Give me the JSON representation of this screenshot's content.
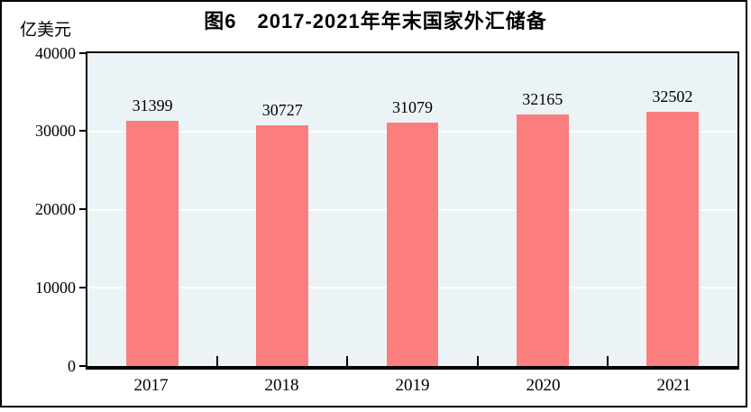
{
  "title": "图6　2017-2021年年末国家外汇储备",
  "unit_label": "亿美元",
  "chart_data": {
    "type": "bar",
    "title": "图6　2017-2021年年末国家外汇储备",
    "categories": [
      "2017",
      "2018",
      "2019",
      "2020",
      "2021"
    ],
    "values": [
      31399,
      30727,
      31079,
      32165,
      32502
    ],
    "xlabel": "",
    "ylabel": "亿美元",
    "ylim": [
      0,
      40000
    ],
    "ytick_interval": 10000,
    "yticks": [
      "40000",
      "30000",
      "20000",
      "10000",
      "0"
    ],
    "grid": "horizontal",
    "legend_position": "none",
    "colors": {
      "bar": "#FC7D7D",
      "plot_bg": "#ECF3F7",
      "gridline": "#FFFFFF",
      "axis": "#000000",
      "frame": "#000000",
      "background": "#FFFFFF"
    }
  }
}
